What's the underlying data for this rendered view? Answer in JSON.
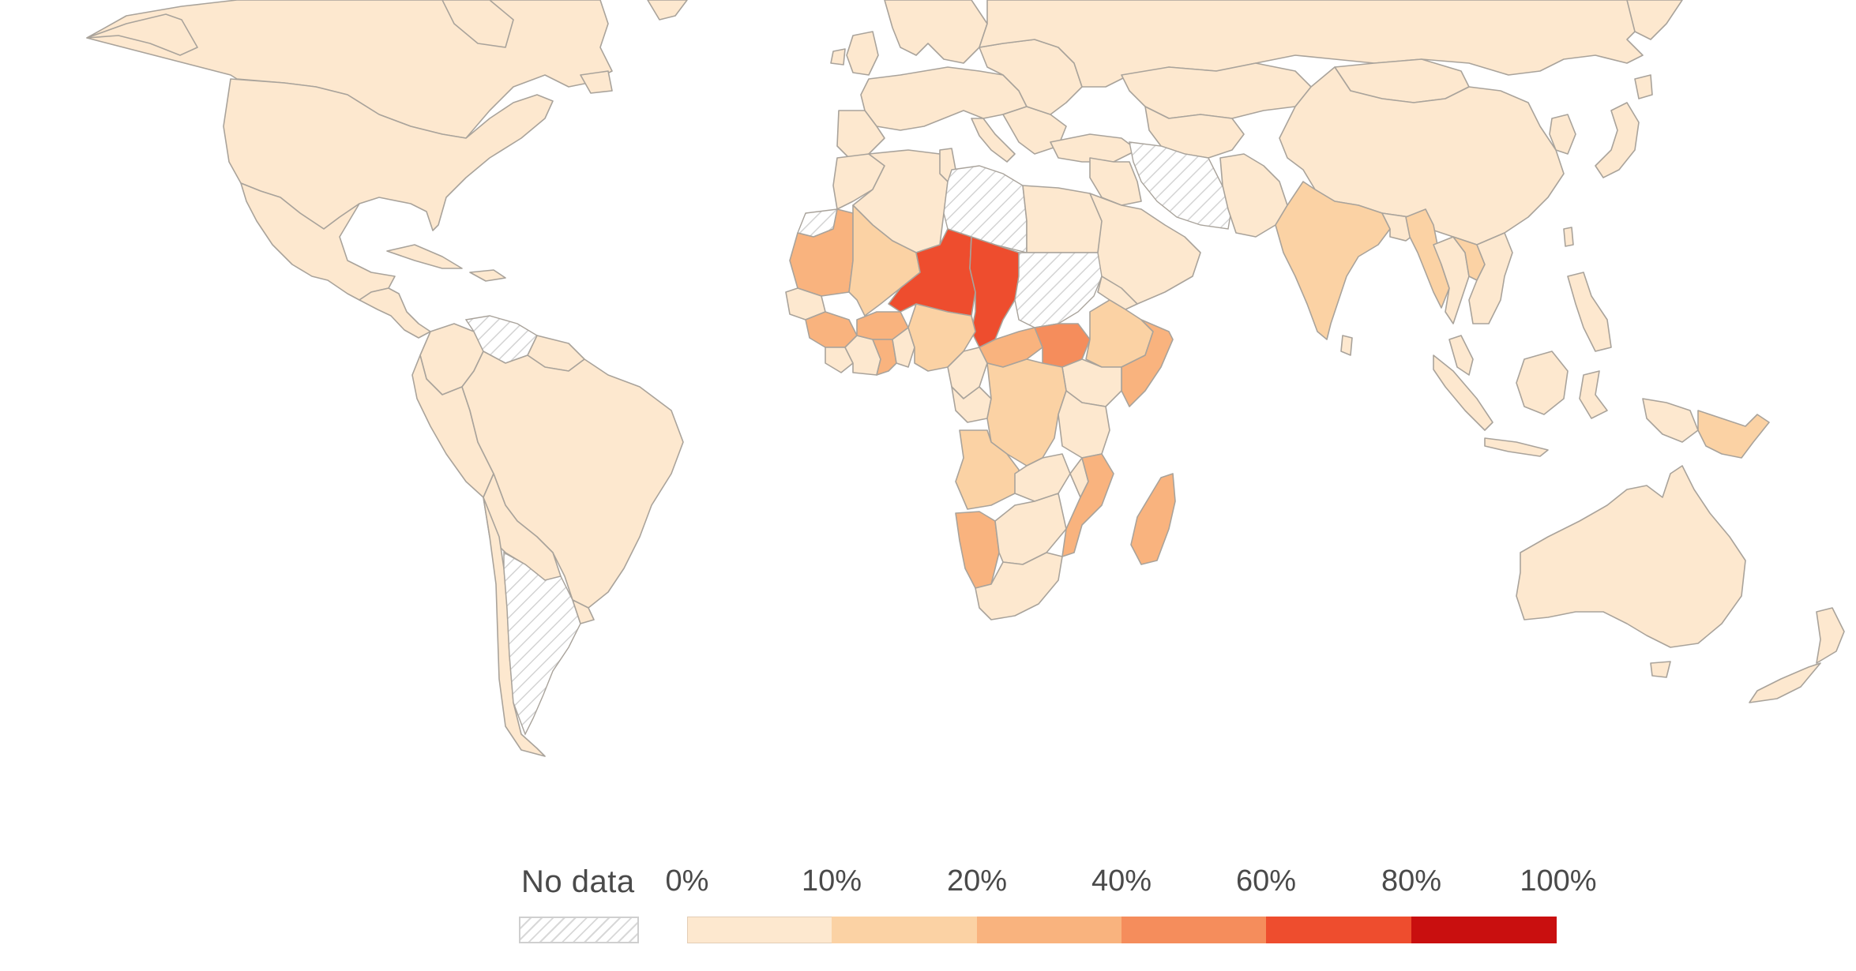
{
  "legend": {
    "no_data_label": "No data",
    "ticks": [
      "0%",
      "10%",
      "20%",
      "40%",
      "60%",
      "80%",
      "100%"
    ],
    "bins": [
      {
        "from": "0%",
        "to": "10%",
        "color": "#fde8cf"
      },
      {
        "from": "10%",
        "to": "20%",
        "color": "#fbd2a4"
      },
      {
        "from": "20%",
        "to": "40%",
        "color": "#f9b37e"
      },
      {
        "from": "40%",
        "to": "60%",
        "color": "#f58d5c"
      },
      {
        "from": "60%",
        "to": "80%",
        "color": "#ee4d2e"
      },
      {
        "from": "80%",
        "to": "100%",
        "color": "#c90f0f"
      }
    ],
    "no_data_style": "hatched-grey"
  },
  "map_colors": {
    "land_default": "#fde8cf",
    "border": "#a9a39b",
    "background": "#ffffff"
  },
  "regions": [
    {
      "name": "Niger",
      "bin": "60%-80%",
      "color": "#ee4d2e"
    },
    {
      "name": "Chad",
      "bin": "60%-80%",
      "color": "#ee4d2e"
    },
    {
      "name": "South Sudan",
      "bin": "40%-60%",
      "color": "#f58d5c"
    },
    {
      "name": "Central African Republic",
      "bin": "20%-40%",
      "color": "#f9b37e"
    },
    {
      "name": "Mauritania",
      "bin": "20%-40%",
      "color": "#f9b37e"
    },
    {
      "name": "Mali (south)",
      "bin": "10%-20%",
      "color": "#fbd2a4"
    },
    {
      "name": "Burkina Faso",
      "bin": "20%-40%",
      "color": "#f9b37e"
    },
    {
      "name": "Ghana",
      "bin": "20%-40%",
      "color": "#f9b37e"
    },
    {
      "name": "Guinea",
      "bin": "20%-40%",
      "color": "#f9b37e"
    },
    {
      "name": "Nigeria",
      "bin": "10%-20%",
      "color": "#fbd2a4"
    },
    {
      "name": "Ethiopia",
      "bin": "10%-20%",
      "color": "#fbd2a4"
    },
    {
      "name": "Somalia",
      "bin": "20%-40%",
      "color": "#f9b37e"
    },
    {
      "name": "DR Congo",
      "bin": "10%-20%",
      "color": "#fbd2a4"
    },
    {
      "name": "Angola",
      "bin": "10%-20%",
      "color": "#fbd2a4"
    },
    {
      "name": "Namibia",
      "bin": "20%-40%",
      "color": "#f9b37e"
    },
    {
      "name": "Mozambique",
      "bin": "20%-40%",
      "color": "#f9b37e"
    },
    {
      "name": "Madagascar",
      "bin": "20%-40%",
      "color": "#f9b37e"
    },
    {
      "name": "India",
      "bin": "10%-20%",
      "color": "#fbd2a4"
    },
    {
      "name": "Myanmar",
      "bin": "10%-20%",
      "color": "#fbd2a4"
    },
    {
      "name": "Laos",
      "bin": "10%-20%",
      "color": "#fbd2a4"
    },
    {
      "name": "Papua New Guinea",
      "bin": "10%-20%",
      "color": "#fbd2a4"
    },
    {
      "name": "Sudan",
      "bin": "No data",
      "color": "hatched"
    },
    {
      "name": "Iran",
      "bin": "No data",
      "color": "hatched"
    },
    {
      "name": "Venezuela",
      "bin": "No data",
      "color": "hatched"
    },
    {
      "name": "Argentina",
      "bin": "No data",
      "color": "hatched"
    },
    {
      "name": "Western Sahara",
      "bin": "No data",
      "color": "hatched"
    },
    {
      "name": "Libya",
      "bin": "No data",
      "color": "hatched"
    }
  ]
}
